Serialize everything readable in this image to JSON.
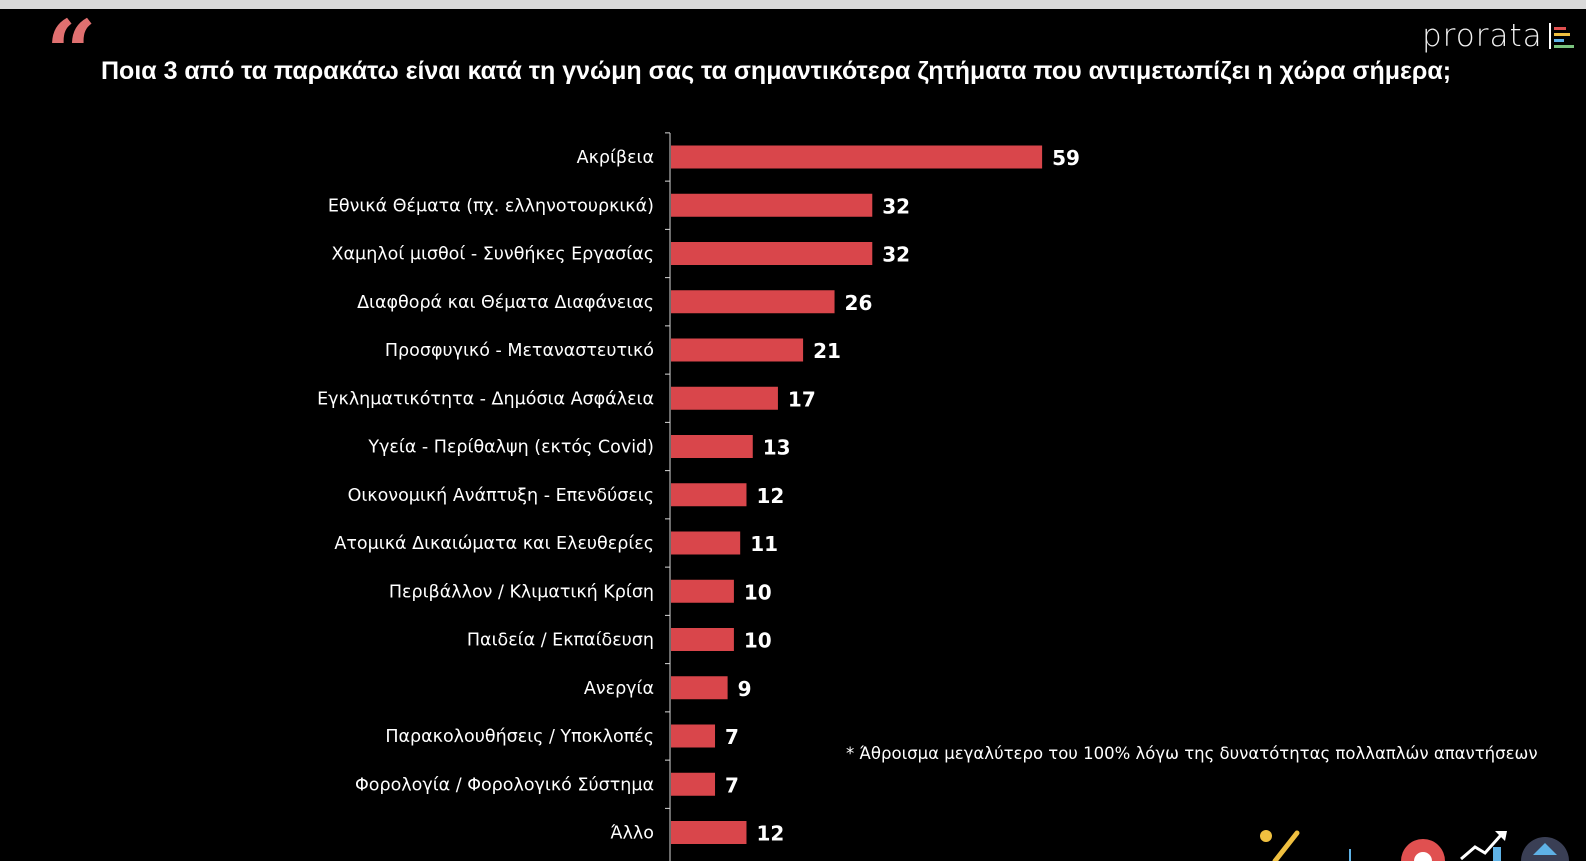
{
  "quote_mark": "“",
  "title": "Ποια 3 από τα παρακάτω είναι κατά τη γνώμη σας τα σημαντικότερα ζητήματα που αντιμετωπίζει η χώρα σήμερα;",
  "brand": {
    "name": "prorata",
    "accent_colors": [
      "#e05050",
      "#f0c040",
      "#5fb2e6",
      "#7bc47f"
    ]
  },
  "footnote": "* Άθροισμα μεγαλύτερο του 100% λόγω της δυνατότητας πολλαπλών απαντήσεων",
  "colors": {
    "bar": "#d9464b",
    "background": "#000000",
    "text": "#ffffff",
    "quote": "#e07070"
  },
  "chart_data": {
    "type": "bar",
    "orientation": "horizontal",
    "title": "Ποια 3 από τα παρακάτω είναι κατά τη γνώμη σας τα σημαντικότερα ζητήματα που αντιμετωπίζει η χώρα σήμερα;",
    "xlabel": "",
    "ylabel": "",
    "xlim": [
      0,
      60
    ],
    "categories": [
      "Ακρίβεια",
      "Εθνικά Θέματα (πχ. ελληνοτουρκικά)",
      "Χαμηλοί μισθοί - Συνθήκες Εργασίας",
      "Διαφθορά και Θέματα Διαφάνειας",
      "Προσφυγικό - Μεταναστευτικό",
      "Εγκληματικότητα - Δημόσια Ασφάλεια",
      "Υγεία - Περίθαλψη (εκτός Covid)",
      "Οικονομική Ανάπτυξη - Επενδύσεις",
      "Ατομικά Δικαιώματα και Ελευθερίες",
      "Περιβάλλον / Κλιματική Κρίση",
      "Παιδεία / Εκπαίδευση",
      "Ανεργία",
      "Παρακολουθήσεις / Υποκλοπές",
      "Φορολογία / Φορολογικό Σύστημα",
      "Άλλο"
    ],
    "values": [
      59,
      32,
      32,
      26,
      21,
      17,
      13,
      12,
      11,
      10,
      10,
      9,
      7,
      7,
      12
    ],
    "grid": false,
    "legend": "none"
  }
}
